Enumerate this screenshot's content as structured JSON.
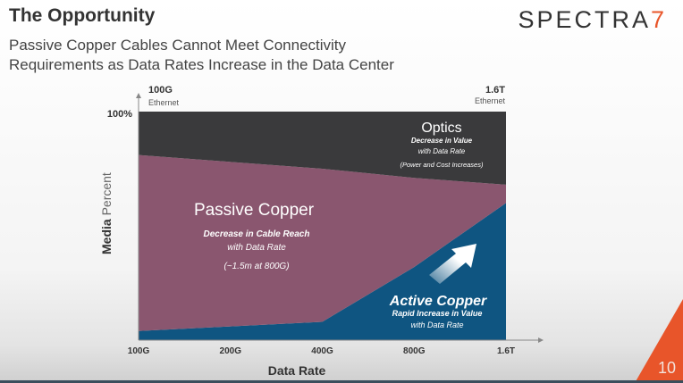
{
  "slide": {
    "title": "The Opportunity",
    "subtitle_line1": "Passive Copper Cables Cannot Meet Connectivity",
    "subtitle_line2": "Requirements as Data Rates Increase in the Data Center",
    "logo_text": "SPECTRA",
    "logo_mark": "7",
    "page_number": "10"
  },
  "chart_data": {
    "type": "area",
    "stacked": true,
    "xlabel": "Data Rate",
    "ylabel_bold": "Media",
    "ylabel_light": "Percent",
    "ymax_label": "100%",
    "ylim": [
      0,
      100
    ],
    "categories": [
      "100G",
      "200G",
      "400G",
      "800G",
      "1.6T"
    ],
    "top_left_label": {
      "bold": "100G",
      "sub": "Ethernet"
    },
    "top_right_label": {
      "bold": "1.6T",
      "sub": "Ethernet"
    },
    "series": [
      {
        "name": "Active Copper",
        "color": "#0f5581",
        "values": [
          4,
          6,
          8,
          32,
          60
        ]
      },
      {
        "name": "Passive Copper",
        "color": "#8a566f",
        "values": [
          77,
          72,
          67,
          39,
          8
        ]
      },
      {
        "name": "Optics",
        "color": "#3a3a3c",
        "values": [
          19,
          22,
          25,
          29,
          32
        ]
      }
    ],
    "annotations": {
      "optics": {
        "title": "Optics",
        "line1": "Decrease in Value",
        "line2": "with Data Rate",
        "line3": "(Power and Cost Increases)"
      },
      "passive": {
        "title": "Passive Copper",
        "line1": "Decrease in Cable Reach",
        "line2": "with Data Rate",
        "line3": "(~1.5m at 800G)"
      },
      "active": {
        "title": "Active Copper",
        "line1": "Rapid Increase in Value",
        "line2": "with Data Rate"
      }
    }
  }
}
